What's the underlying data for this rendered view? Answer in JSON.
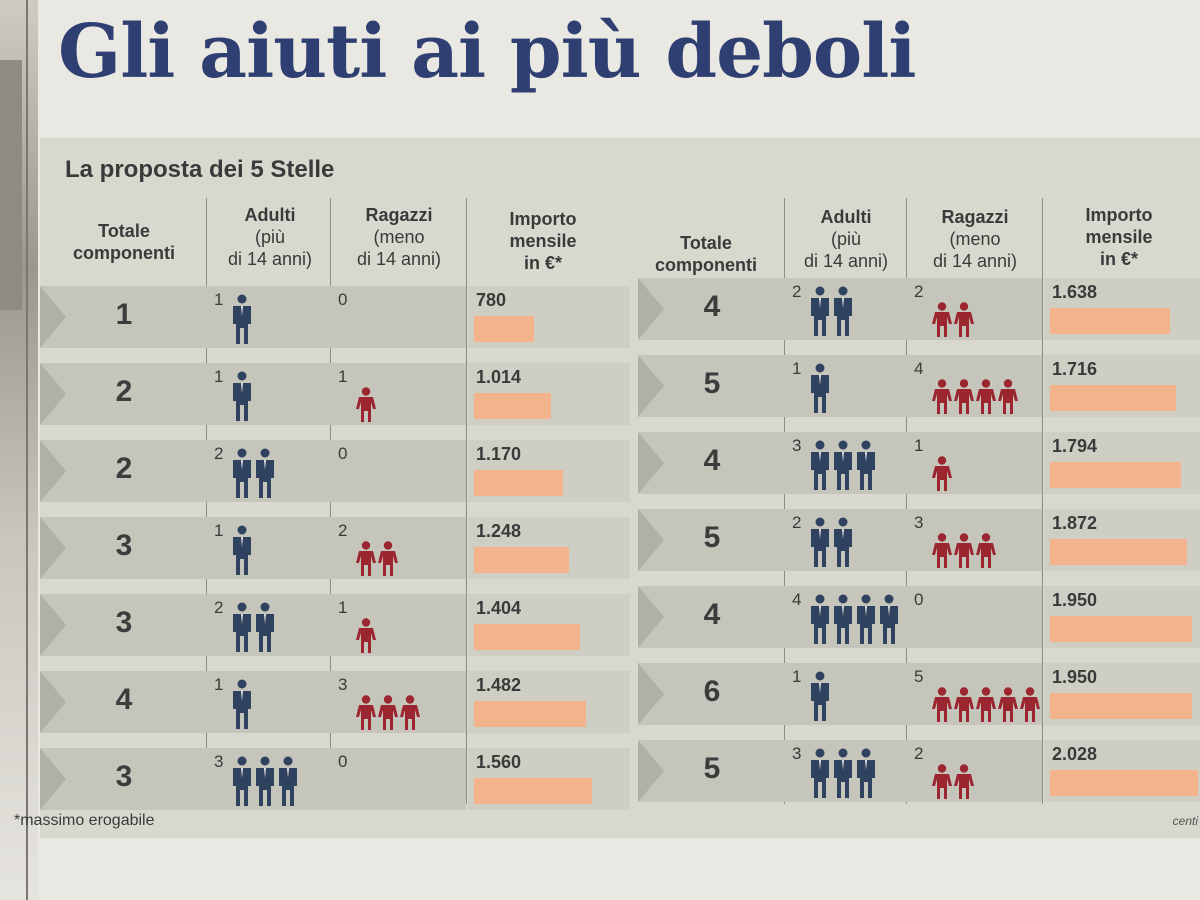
{
  "headline": "Gli aiuti ai più deboli",
  "subtitle": "La proposta dei 5 Stelle",
  "headers": {
    "totale": [
      "Totale",
      "componenti"
    ],
    "adulti": [
      "Adulti",
      "(più",
      "di 14 anni)"
    ],
    "ragazzi": [
      "Ragazzi",
      "(meno",
      "di 14 anni)"
    ],
    "importo": [
      "Importo",
      "mensile",
      "in €*"
    ]
  },
  "colors": {
    "adult": "#2f4260",
    "kid": "#9b2630",
    "bar": "#f3b48d",
    "headline": "#2f3f71"
  },
  "left_rows": [
    {
      "totale": "1",
      "adulti": 1,
      "ragazzi": 0,
      "importo": "780",
      "value": 780
    },
    {
      "totale": "2",
      "adulti": 1,
      "ragazzi": 1,
      "importo": "1.014",
      "value": 1014
    },
    {
      "totale": "2",
      "adulti": 2,
      "ragazzi": 0,
      "importo": "1.170",
      "value": 1170
    },
    {
      "totale": "3",
      "adulti": 1,
      "ragazzi": 2,
      "importo": "1.248",
      "value": 1248
    },
    {
      "totale": "3",
      "adulti": 2,
      "ragazzi": 1,
      "importo": "1.404",
      "value": 1404
    },
    {
      "totale": "4",
      "adulti": 1,
      "ragazzi": 3,
      "importo": "1.482",
      "value": 1482
    },
    {
      "totale": "3",
      "adulti": 3,
      "ragazzi": 0,
      "importo": "1.560",
      "value": 1560
    }
  ],
  "right_rows": [
    {
      "totale": "4",
      "adulti": 2,
      "ragazzi": 2,
      "importo": "1.638",
      "value": 1638
    },
    {
      "totale": "5",
      "adulti": 1,
      "ragazzi": 4,
      "importo": "1.716",
      "value": 1716
    },
    {
      "totale": "4",
      "adulti": 3,
      "ragazzi": 1,
      "importo": "1.794",
      "value": 1794
    },
    {
      "totale": "5",
      "adulti": 2,
      "ragazzi": 3,
      "importo": "1.872",
      "value": 1872
    },
    {
      "totale": "4",
      "adulti": 4,
      "ragazzi": 0,
      "importo": "1.950",
      "value": 1950
    },
    {
      "totale": "6",
      "adulti": 1,
      "ragazzi": 5,
      "importo": "1.950",
      "value": 1950
    },
    {
      "totale": "5",
      "adulti": 3,
      "ragazzi": 2,
      "importo": "2.028",
      "value": 2028
    }
  ],
  "footnote": "*massimo erogabile",
  "credit": "centi"
}
